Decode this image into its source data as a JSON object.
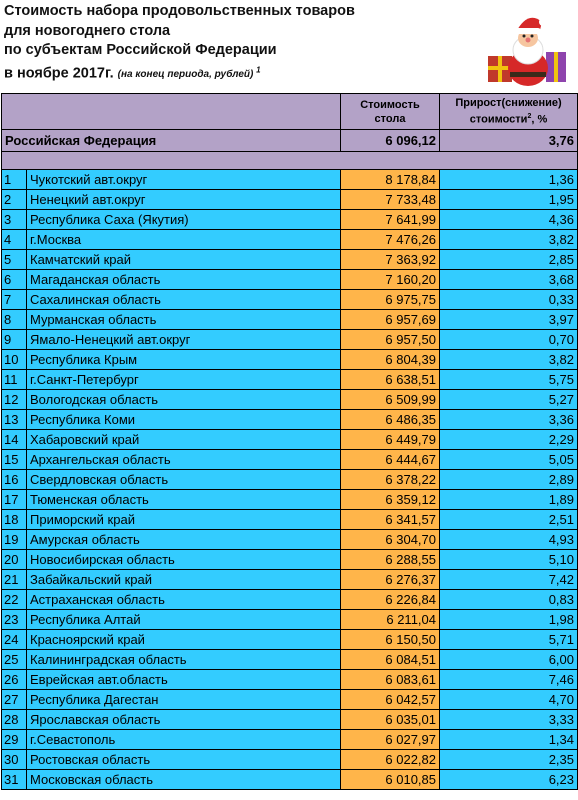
{
  "title": {
    "line1": "Стоимость набора продовольственных товаров",
    "line2": "для новогоднего стола",
    "line3": "по субъектам Российской Федерации",
    "line4": "в ноябре 2017г.",
    "note": "(на конец периода, рублей)",
    "note_sup": "1"
  },
  "header": {
    "cost": "Стоимость стола",
    "growth": "Прирост(снижение) стоимости",
    "growth_sup": "2",
    "growth_unit": ", %"
  },
  "federation": {
    "name": "Российская Федерация",
    "cost": "6 096,12",
    "growth": "3,76"
  },
  "rows": [
    {
      "n": "1",
      "name": "Чукотский авт.округ",
      "cost": "8 178,84",
      "growth": "1,36"
    },
    {
      "n": "2",
      "name": "Ненецкий авт.округ",
      "cost": "7 733,48",
      "growth": "1,95"
    },
    {
      "n": "3",
      "name": "Республика Саха (Якутия)",
      "cost": "7 641,99",
      "growth": "4,36"
    },
    {
      "n": "4",
      "name": "г.Москва",
      "cost": "7 476,26",
      "growth": "3,82"
    },
    {
      "n": "5",
      "name": "Камчатский край",
      "cost": "7 363,92",
      "growth": "2,85"
    },
    {
      "n": "6",
      "name": "Магаданская область",
      "cost": "7 160,20",
      "growth": "3,68"
    },
    {
      "n": "7",
      "name": "Сахалинская область",
      "cost": "6 975,75",
      "growth": "0,33"
    },
    {
      "n": "8",
      "name": "Мурманская область",
      "cost": "6 957,69",
      "growth": "3,97"
    },
    {
      "n": "9",
      "name": "Ямало-Ненецкий авт.округ",
      "cost": "6 957,50",
      "growth": "0,70"
    },
    {
      "n": "10",
      "name": "Республика Крым",
      "cost": "6 804,39",
      "growth": "3,82"
    },
    {
      "n": "11",
      "name": "г.Санкт-Петербург",
      "cost": "6 638,51",
      "growth": "5,75"
    },
    {
      "n": "12",
      "name": "Вологодская область",
      "cost": "6 509,99",
      "growth": "5,27"
    },
    {
      "n": "13",
      "name": "Республика Коми",
      "cost": "6 486,35",
      "growth": "3,36"
    },
    {
      "n": "14",
      "name": "Хабаровский край",
      "cost": "6 449,79",
      "growth": "2,29"
    },
    {
      "n": "15",
      "name": "Архангельская область",
      "cost": "6 444,67",
      "growth": "5,05"
    },
    {
      "n": "16",
      "name": "Свердловская область",
      "cost": "6 378,22",
      "growth": "2,89"
    },
    {
      "n": "17",
      "name": "Тюменская область",
      "cost": "6 359,12",
      "growth": "1,89"
    },
    {
      "n": "18",
      "name": "Приморский край",
      "cost": "6 341,57",
      "growth": "2,51"
    },
    {
      "n": "19",
      "name": "Амурская область",
      "cost": "6 304,70",
      "growth": "4,93"
    },
    {
      "n": "20",
      "name": "Новосибирская область",
      "cost": "6 288,55",
      "growth": "5,10"
    },
    {
      "n": "21",
      "name": "Забайкальский край",
      "cost": "6 276,37",
      "growth": "7,42"
    },
    {
      "n": "22",
      "name": "Астраханская область",
      "cost": "6 226,84",
      "growth": "0,83"
    },
    {
      "n": "23",
      "name": "Республика Алтай",
      "cost": "6 211,04",
      "growth": "1,98"
    },
    {
      "n": "24",
      "name": "Красноярский край",
      "cost": "6 150,50",
      "growth": "5,71"
    },
    {
      "n": "25",
      "name": "Калининградская область",
      "cost": "6 084,51",
      "growth": "6,00"
    },
    {
      "n": "26",
      "name": "Еврейская авт.область",
      "cost": "6 083,61",
      "growth": "7,46"
    },
    {
      "n": "27",
      "name": "Республика Дагестан",
      "cost": "6 042,57",
      "growth": "4,70"
    },
    {
      "n": "28",
      "name": "Ярославская область",
      "cost": "6 035,01",
      "growth": "3,33"
    },
    {
      "n": "29",
      "name": "г.Севастополь",
      "cost": "6 027,97",
      "growth": "1,34"
    },
    {
      "n": "30",
      "name": "Ростовская область",
      "cost": "6 022,82",
      "growth": "2,35"
    },
    {
      "n": "31",
      "name": "Московская область",
      "cost": "6 010,85",
      "growth": "6,23"
    }
  ],
  "colors": {
    "header_bg": "#b3a2c7",
    "row_bg": "#33ccff",
    "cost_bg": "#ffb54a"
  },
  "icons": {
    "decoration": "santa-claus-icon"
  }
}
